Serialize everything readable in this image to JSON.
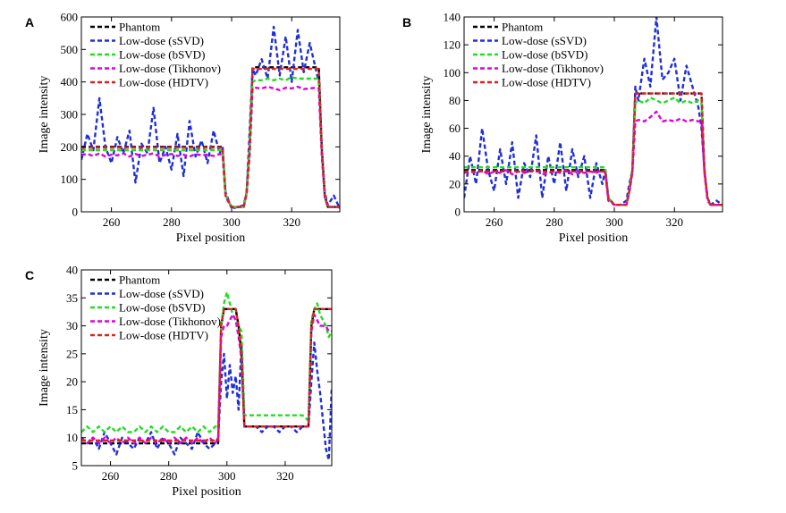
{
  "chart_data": [
    {
      "panel": "A",
      "type": "line",
      "xlabel": "Pixel position",
      "ylabel": "Image intensity",
      "xlim": [
        250,
        336
      ],
      "ylim": [
        0,
        600
      ],
      "xticks": [
        260,
        280,
        300,
        320
      ],
      "yticks": [
        0,
        100,
        200,
        300,
        400,
        500,
        600
      ],
      "grid": false,
      "legend": "top-left",
      "x": [
        250,
        252,
        254,
        256,
        258,
        260,
        262,
        264,
        266,
        268,
        270,
        272,
        274,
        276,
        278,
        280,
        282,
        284,
        286,
        288,
        290,
        292,
        294,
        296,
        297,
        298,
        300,
        302,
        304,
        305,
        306,
        307,
        308,
        310,
        312,
        314,
        316,
        318,
        320,
        322,
        324,
        326,
        328,
        329,
        330,
        331,
        332,
        334,
        336
      ],
      "series": [
        {
          "name": "Phantom",
          "color": "#000000",
          "values": [
            200,
            200,
            200,
            200,
            200,
            200,
            200,
            200,
            200,
            200,
            200,
            200,
            200,
            200,
            200,
            200,
            200,
            200,
            200,
            200,
            200,
            200,
            200,
            200,
            200,
            50,
            15,
            15,
            15,
            60,
            200,
            445,
            445,
            445,
            445,
            445,
            445,
            445,
            445,
            445,
            445,
            445,
            445,
            445,
            200,
            50,
            15,
            15,
            15
          ]
        },
        {
          "name": "Low-dose (sSVD)",
          "color": "#1f2fd6",
          "values": [
            160,
            240,
            190,
            350,
            200,
            150,
            230,
            180,
            250,
            90,
            210,
            180,
            320,
            150,
            200,
            130,
            240,
            110,
            280,
            170,
            220,
            150,
            250,
            180,
            200,
            60,
            10,
            15,
            20,
            60,
            250,
            440,
            420,
            470,
            410,
            570,
            420,
            540,
            400,
            560,
            430,
            520,
            440,
            400,
            200,
            60,
            20,
            50,
            10
          ]
        },
        {
          "name": "Low-dose (bSVD)",
          "color": "#22dd22",
          "values": [
            190,
            190,
            190,
            190,
            190,
            190,
            190,
            190,
            190,
            190,
            190,
            190,
            190,
            190,
            190,
            190,
            190,
            190,
            190,
            190,
            190,
            190,
            190,
            190,
            190,
            50,
            15,
            15,
            15,
            55,
            190,
            400,
            405,
            405,
            410,
            405,
            410,
            405,
            415,
            410,
            410,
            410,
            410,
            410,
            190,
            50,
            15,
            15,
            15
          ]
        },
        {
          "name": "Low-dose (Tikhonov)",
          "color": "#e000e0",
          "values": [
            175,
            178,
            172,
            180,
            170,
            176,
            174,
            180,
            170,
            178,
            172,
            176,
            180,
            170,
            175,
            178,
            172,
            176,
            170,
            178,
            174,
            176,
            172,
            178,
            175,
            45,
            15,
            15,
            15,
            55,
            175,
            380,
            382,
            380,
            385,
            380,
            375,
            382,
            380,
            385,
            378,
            380,
            382,
            380,
            175,
            45,
            15,
            15,
            15
          ]
        },
        {
          "name": "Low-dose (HDTV)",
          "color": "#e02020",
          "values": [
            198,
            198,
            198,
            198,
            198,
            198,
            198,
            198,
            198,
            198,
            198,
            198,
            198,
            198,
            198,
            198,
            198,
            198,
            198,
            198,
            198,
            198,
            198,
            198,
            198,
            50,
            15,
            15,
            15,
            60,
            198,
            440,
            440,
            440,
            440,
            440,
            440,
            440,
            440,
            440,
            440,
            440,
            440,
            440,
            198,
            50,
            15,
            15,
            15
          ]
        }
      ]
    },
    {
      "panel": "B",
      "type": "line",
      "xlabel": "Pixel position",
      "ylabel": "Image intensity",
      "xlim": [
        250,
        336
      ],
      "ylim": [
        0,
        140
      ],
      "xticks": [
        260,
        280,
        300,
        320
      ],
      "yticks": [
        0,
        20,
        40,
        60,
        80,
        100,
        120,
        140
      ],
      "grid": false,
      "legend": "top-left",
      "x": [
        250,
        252,
        254,
        256,
        258,
        260,
        262,
        264,
        266,
        268,
        270,
        272,
        274,
        276,
        278,
        280,
        282,
        284,
        286,
        288,
        290,
        292,
        294,
        296,
        297,
        298,
        300,
        302,
        304,
        305,
        306,
        307,
        308,
        310,
        312,
        314,
        316,
        318,
        320,
        322,
        324,
        326,
        328,
        329,
        330,
        331,
        332,
        334,
        336
      ],
      "series": [
        {
          "name": "Phantom",
          "color": "#000000",
          "values": [
            30,
            30,
            30,
            30,
            30,
            30,
            30,
            30,
            30,
            30,
            30,
            30,
            30,
            30,
            30,
            30,
            30,
            30,
            30,
            30,
            30,
            30,
            30,
            30,
            30,
            10,
            5,
            5,
            5,
            15,
            30,
            85,
            85,
            85,
            85,
            85,
            85,
            85,
            85,
            85,
            85,
            85,
            85,
            85,
            30,
            10,
            5,
            5,
            5
          ]
        },
        {
          "name": "Low-dose (sSVD)",
          "color": "#1f2fd6",
          "values": [
            10,
            40,
            20,
            60,
            30,
            15,
            45,
            20,
            50,
            10,
            35,
            25,
            55,
            10,
            40,
            20,
            50,
            15,
            45,
            25,
            40,
            10,
            35,
            20,
            30,
            10,
            5,
            5,
            8,
            20,
            30,
            90,
            80,
            110,
            90,
            140,
            95,
            100,
            110,
            80,
            105,
            90,
            75,
            60,
            30,
            10,
            5,
            8,
            5
          ]
        },
        {
          "name": "Low-dose (bSVD)",
          "color": "#22dd22",
          "values": [
            32,
            32,
            32,
            32,
            32,
            32,
            32,
            32,
            32,
            32,
            32,
            32,
            32,
            32,
            32,
            32,
            32,
            32,
            32,
            32,
            32,
            32,
            32,
            32,
            32,
            10,
            5,
            5,
            5,
            15,
            32,
            78,
            80,
            78,
            82,
            80,
            78,
            80,
            82,
            78,
            80,
            78,
            80,
            78,
            32,
            10,
            5,
            5,
            5
          ]
        },
        {
          "name": "Low-dose (Tikhonov)",
          "color": "#e000e0",
          "values": [
            28,
            29,
            28,
            30,
            27,
            29,
            28,
            30,
            27,
            29,
            28,
            29,
            30,
            27,
            28,
            29,
            28,
            30,
            27,
            29,
            28,
            29,
            28,
            30,
            28,
            8,
            5,
            5,
            5,
            14,
            28,
            65,
            66,
            65,
            68,
            72,
            65,
            66,
            65,
            67,
            65,
            66,
            65,
            65,
            28,
            8,
            5,
            5,
            5
          ]
        },
        {
          "name": "Low-dose (HDTV)",
          "color": "#e02020",
          "values": [
            29,
            29,
            29,
            29,
            29,
            29,
            29,
            29,
            29,
            29,
            29,
            29,
            29,
            29,
            29,
            29,
            29,
            29,
            29,
            29,
            29,
            29,
            29,
            29,
            29,
            10,
            5,
            5,
            5,
            15,
            29,
            85,
            85,
            85,
            85,
            85,
            85,
            85,
            85,
            85,
            85,
            85,
            85,
            85,
            29,
            10,
            5,
            5,
            5
          ]
        }
      ]
    },
    {
      "panel": "C",
      "type": "line",
      "xlabel": "Pixel position",
      "ylabel": "Image intensity",
      "xlim": [
        250,
        336
      ],
      "ylim": [
        5,
        40
      ],
      "xticks": [
        260,
        280,
        300,
        320
      ],
      "yticks": [
        5,
        10,
        15,
        20,
        25,
        30,
        35,
        40
      ],
      "grid": false,
      "legend": "top-left",
      "x": [
        250,
        252,
        254,
        256,
        258,
        260,
        262,
        264,
        266,
        268,
        270,
        272,
        274,
        276,
        278,
        280,
        282,
        284,
        286,
        288,
        290,
        292,
        294,
        296,
        297,
        298,
        299,
        300,
        301,
        302,
        303,
        304,
        305,
        306,
        307,
        308,
        310,
        312,
        314,
        316,
        318,
        320,
        322,
        324,
        326,
        328,
        329,
        330,
        331,
        332,
        334,
        335,
        336
      ],
      "series": [
        {
          "name": "Phantom",
          "color": "#000000",
          "values": [
            9,
            9,
            9,
            9,
            9,
            9,
            9,
            9,
            9,
            9,
            9,
            9,
            9,
            9,
            9,
            9,
            9,
            9,
            9,
            9,
            9,
            9,
            9,
            9,
            9,
            30,
            33,
            33,
            33,
            33,
            33,
            30,
            25,
            12,
            12,
            12,
            12,
            12,
            12,
            12,
            12,
            12,
            12,
            12,
            12,
            12,
            30,
            33,
            33,
            33,
            33,
            33,
            33
          ]
        },
        {
          "name": "Low-dose (sSVD)",
          "color": "#1f2fd6",
          "values": [
            10,
            9,
            10,
            8,
            11,
            9,
            7,
            10,
            9,
            8,
            10,
            9,
            11,
            8,
            10,
            9,
            7,
            10,
            9,
            8,
            11,
            9,
            8,
            9,
            10,
            20,
            25,
            17,
            23,
            18,
            21,
            15,
            27,
            12,
            12,
            12,
            12,
            11,
            12,
            12,
            11,
            12,
            12,
            11,
            12,
            12,
            20,
            27,
            22,
            18,
            8,
            6,
            19
          ]
        },
        {
          "name": "Low-dose (bSVD)",
          "color": "#22dd22",
          "values": [
            11,
            12,
            11,
            12,
            11,
            12,
            11,
            12,
            11,
            11,
            12,
            11,
            12,
            11,
            12,
            11,
            11,
            12,
            11,
            12,
            11,
            12,
            11,
            12,
            12,
            30,
            34,
            36,
            34,
            32,
            31,
            30,
            29,
            14,
            14,
            14,
            14,
            14,
            14,
            14,
            14,
            14,
            14,
            14,
            14,
            13,
            31,
            33,
            34,
            32,
            30,
            28,
            29
          ]
        },
        {
          "name": "Low-dose (Tikhonov)",
          "color": "#e000e0",
          "values": [
            10,
            9,
            10,
            9,
            10,
            9,
            10,
            9,
            10,
            9,
            10,
            9,
            10,
            9,
            10,
            9,
            10,
            9,
            10,
            9,
            10,
            9,
            10,
            9,
            10,
            28,
            30,
            30,
            31,
            32,
            31,
            28,
            24,
            12,
            12,
            12,
            12,
            12,
            12,
            12,
            12,
            12,
            12,
            12,
            12,
            12,
            29,
            32,
            31,
            30,
            30,
            29,
            29
          ]
        },
        {
          "name": "Low-dose (HDTV)",
          "color": "#e02020",
          "values": [
            9.5,
            9.5,
            9.5,
            9.5,
            9.5,
            9.5,
            9.5,
            9.5,
            9.5,
            9.5,
            9.5,
            9.5,
            9.5,
            9.5,
            9.5,
            9.5,
            9.5,
            9.5,
            9.5,
            9.5,
            9.5,
            9.5,
            9.5,
            9.5,
            9.5,
            30,
            33,
            33,
            33,
            33,
            33,
            30,
            25,
            12,
            12,
            12,
            12,
            12,
            12,
            12,
            12,
            12,
            12,
            12,
            12,
            12,
            30,
            33,
            33,
            33,
            33,
            33,
            33
          ]
        }
      ]
    }
  ]
}
